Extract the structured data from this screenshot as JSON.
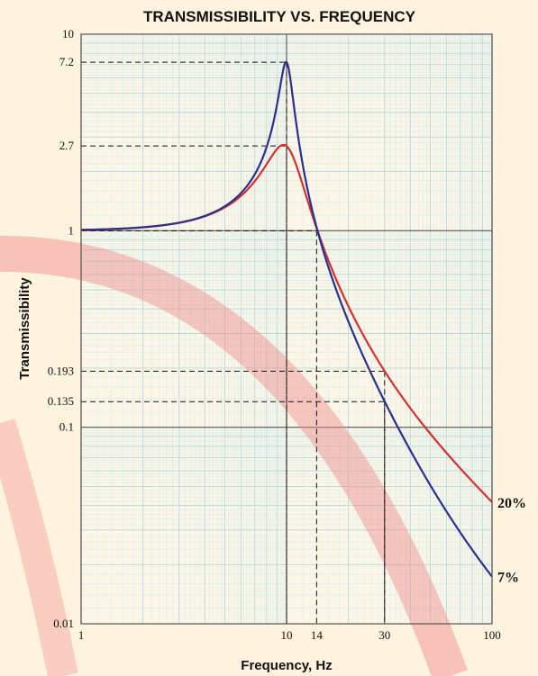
{
  "chart_data": {
    "type": "line",
    "title": "TRANSMISSIBILITY VS. FREQUENCY",
    "xlabel": "Frequency,  Hz",
    "ylabel": "Transmissibility",
    "x_scale": "log",
    "y_scale": "log",
    "xlim": [
      1,
      100
    ],
    "ylim": [
      0.01,
      10
    ],
    "x_ticks": [
      {
        "value": 1,
        "label": "1"
      },
      {
        "value": 10,
        "label": "10"
      },
      {
        "value": 14,
        "label": "14"
      },
      {
        "value": 30,
        "label": "30"
      },
      {
        "value": 100,
        "label": "100"
      }
    ],
    "y_ticks": [
      {
        "value": 10,
        "label": "10"
      },
      {
        "value": 7.2,
        "label": "7.2"
      },
      {
        "value": 2.7,
        "label": "2.7"
      },
      {
        "value": 1,
        "label": "1"
      },
      {
        "value": 0.193,
        "label": "0.193"
      },
      {
        "value": 0.135,
        "label": "0.135"
      },
      {
        "value": 0.1,
        "label": "0.1"
      },
      {
        "value": 0.01,
        "label": "0.01"
      }
    ],
    "grid": true,
    "series": [
      {
        "name": "20%",
        "color": "#d43030",
        "damping_ratio": 0.2,
        "natural_frequency": 10
      },
      {
        "name": "7%",
        "color": "#2b2f8f",
        "damping_ratio": 0.07,
        "natural_frequency": 10
      }
    ],
    "annotations": [
      {
        "x": 10,
        "y": 7.2
      },
      {
        "x": 10,
        "y": 2.7
      },
      {
        "x": 14,
        "y": 1
      },
      {
        "x": 30,
        "y": 0.193
      },
      {
        "x": 30,
        "y": 0.135
      }
    ]
  }
}
